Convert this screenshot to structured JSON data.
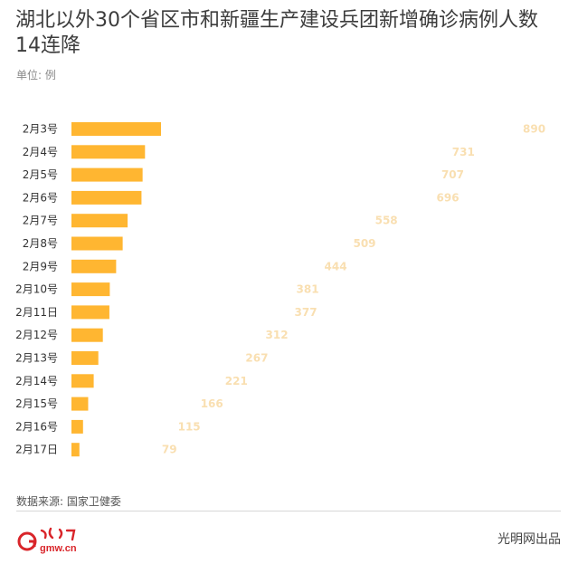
{
  "header": {
    "title": "湖北以外30个省区市和新疆生产建设兵团新增确诊病例人数14连降",
    "unit": "单位: 例"
  },
  "colors": {
    "bar": "#ffb631",
    "value_label": "#f9dfb1",
    "logo_red": "#d9252a"
  },
  "chart_data": {
    "type": "bar",
    "orientation": "horizontal",
    "categories": [
      "2月3号",
      "2月4号",
      "2月5号",
      "2月6号",
      "2月7号",
      "2月8号",
      "2月9号",
      "2月10号",
      "2月11日",
      "2月12号",
      "2月13号",
      "2月14号",
      "2月15号",
      "2月16号",
      "2月17日"
    ],
    "values": [
      890,
      731,
      707,
      696,
      558,
      509,
      444,
      381,
      377,
      312,
      267,
      221,
      166,
      115,
      79
    ],
    "xlim": [
      0,
      890
    ],
    "grid": false,
    "legend": "none"
  },
  "footer": {
    "source": "数据来源: 国家卫健委",
    "credit": "光明网出品"
  },
  "logo": {
    "name": "gmw-logo",
    "text": "gmw.cn"
  }
}
